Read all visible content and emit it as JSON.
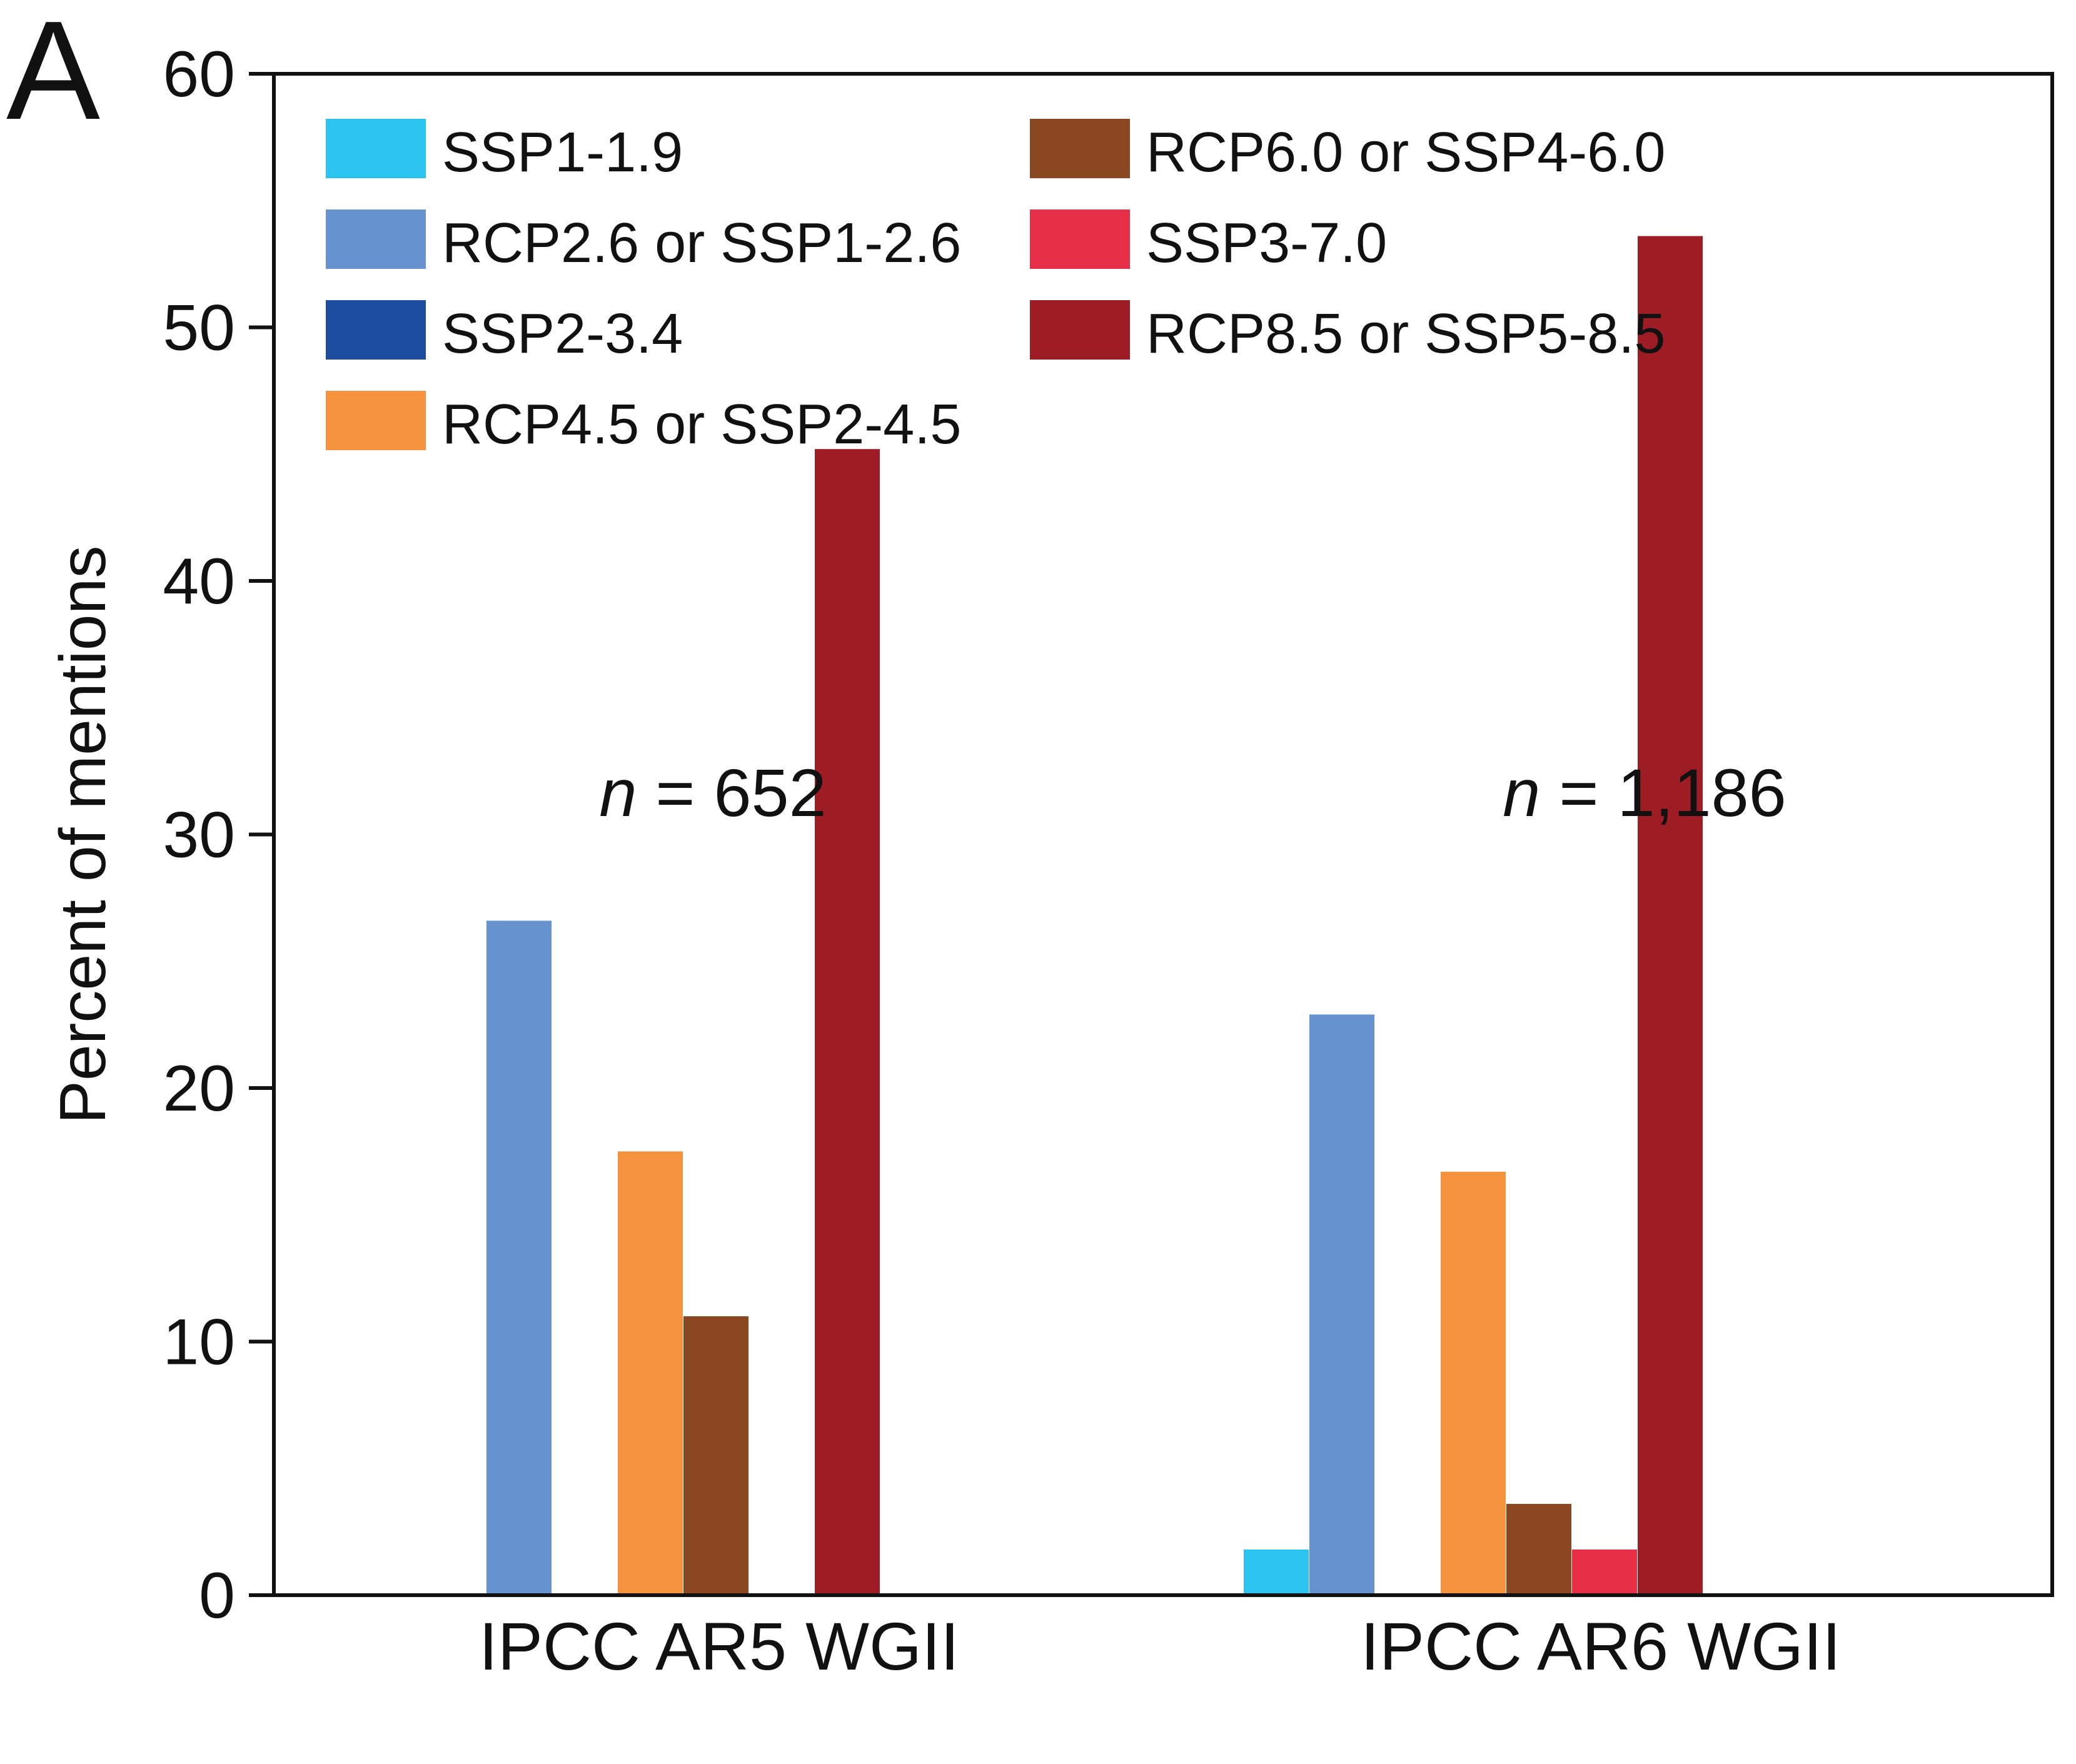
{
  "chart_data": {
    "type": "bar",
    "panel_label": "A",
    "title": "",
    "xlabel": "",
    "ylabel": "Percent of mentions",
    "ylim": [
      0,
      60
    ],
    "yticks": [
      "0",
      "10",
      "20",
      "30",
      "40",
      "50",
      "60"
    ],
    "ytick_values": [
      0,
      10,
      20,
      30,
      40,
      50,
      60
    ],
    "grid": false,
    "legend_position": "top-left",
    "categories": [
      "IPCC AR5 WGII",
      "IPCC AR6 WGII"
    ],
    "annotations": [
      {
        "italic": "n",
        "text": " = 652"
      },
      {
        "italic": "n",
        "text": " = 1,186"
      }
    ],
    "series": [
      {
        "name": "SSP1-1.9",
        "color": "#2bc4f1",
        "values": [
          0,
          1.8
        ]
      },
      {
        "name": "RCP2.6 or SSP1-2.6",
        "color": "#6693cf",
        "values": [
          26.6,
          22.9
        ]
      },
      {
        "name": "SSP2-3.4",
        "color": "#1b4c9e",
        "values": [
          0,
          0
        ]
      },
      {
        "name": "RCP4.5 or SSP2-4.5",
        "color": "#f4923d",
        "values": [
          17.5,
          16.7
        ]
      },
      {
        "name": "RCP6.0 or SSP4-6.0",
        "color": "#8b4722",
        "values": [
          11.0,
          3.6
        ]
      },
      {
        "name": "SSP3-7.0",
        "color": "#e62f46",
        "values": [
          0,
          1.8
        ]
      },
      {
        "name": "RCP8.5 or SSP5-8.5",
        "color": "#9e1c24",
        "values": [
          45.2,
          53.6
        ]
      }
    ]
  }
}
